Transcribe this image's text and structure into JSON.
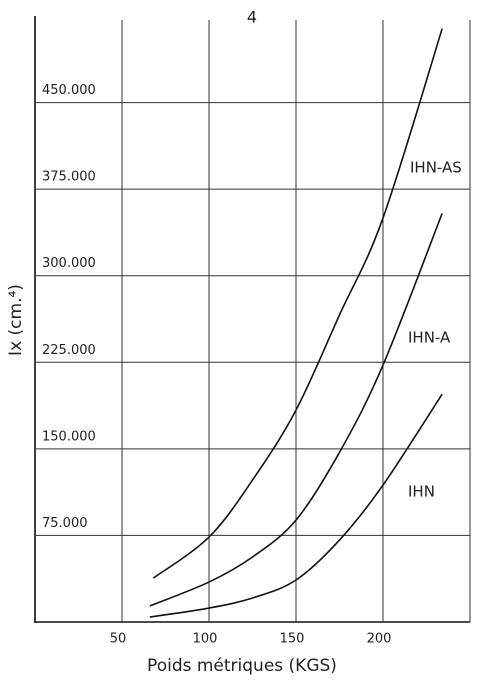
{
  "chart_data": {
    "type": "line",
    "title": "4",
    "x_label": "Poids métriques (KGS)",
    "y_label": "Ix (cm.⁴)",
    "xlim": [
      0,
      250
    ],
    "ylim": [
      0,
      525000
    ],
    "xticks": [
      50,
      100,
      150,
      200
    ],
    "yticks": [
      {
        "value": 75000,
        "label": "75.000"
      },
      {
        "value": 150000,
        "label": "150.000"
      },
      {
        "value": 225000,
        "label": "225.000"
      },
      {
        "value": 300000,
        "label": "300.000"
      },
      {
        "value": 375000,
        "label": "375.000"
      },
      {
        "value": 450000,
        "label": "450.000"
      }
    ],
    "grid": true,
    "series": [
      {
        "name": "IHN-AS",
        "color": "#111111",
        "x": [
          68,
          100,
          125,
          150,
          175,
          200,
          234
        ],
        "values": [
          38000,
          73600,
          123000,
          183600,
          266000,
          350000,
          514000
        ]
      },
      {
        "name": "IHN-A",
        "color": "#111111",
        "x": [
          66,
          100,
          125,
          150,
          175,
          200,
          234
        ],
        "values": [
          13900,
          34600,
          56300,
          88300,
          147000,
          222600,
          354000
        ]
      },
      {
        "name": "IHN",
        "color": "#111111",
        "x": [
          66,
          100,
          125,
          150,
          175,
          200,
          234
        ],
        "values": [
          4300,
          12100,
          20800,
          36400,
          71000,
          118600,
          197400
        ]
      }
    ]
  }
}
